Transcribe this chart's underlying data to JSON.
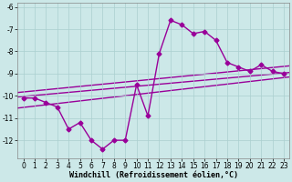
{
  "xlabel": "Windchill (Refroidissement éolien,°C)",
  "x": [
    0,
    1,
    2,
    3,
    4,
    5,
    6,
    7,
    8,
    9,
    10,
    11,
    12,
    13,
    14,
    15,
    16,
    17,
    18,
    19,
    20,
    21,
    22,
    23
  ],
  "y_main": [
    -10.1,
    -10.1,
    -10.3,
    -10.5,
    -11.5,
    -11.2,
    -12.0,
    -12.4,
    -12.0,
    -12.0,
    -9.5,
    -10.9,
    -8.1,
    -6.6,
    -6.8,
    -7.2,
    -7.1,
    -7.5,
    -8.5,
    -8.7,
    -8.9,
    -8.6,
    -8.9,
    -9.0
  ],
  "ylim": [
    -12.8,
    -5.8
  ],
  "xlim": [
    -0.5,
    23.5
  ],
  "yticks": [
    -12,
    -11,
    -10,
    -9,
    -8,
    -7,
    -6
  ],
  "xticks": [
    0,
    1,
    2,
    3,
    4,
    5,
    6,
    7,
    8,
    9,
    10,
    11,
    12,
    13,
    14,
    15,
    16,
    17,
    18,
    19,
    20,
    21,
    22,
    23
  ],
  "line_color": "#990099",
  "bg_color": "#cce8e8",
  "grid_color": "#aacfcf",
  "marker": "D",
  "marker_size": 2.5,
  "line_width": 1.0,
  "tick_fontsize": 5.5,
  "reg_lines": [
    {
      "x0": -0.5,
      "y0": -9.85,
      "x1": 23.5,
      "y1": -8.65
    },
    {
      "x0": -0.5,
      "y0": -10.05,
      "x1": 23.5,
      "y1": -8.95
    },
    {
      "x0": -0.5,
      "y0": -10.55,
      "x1": 23.5,
      "y1": -9.15
    }
  ]
}
